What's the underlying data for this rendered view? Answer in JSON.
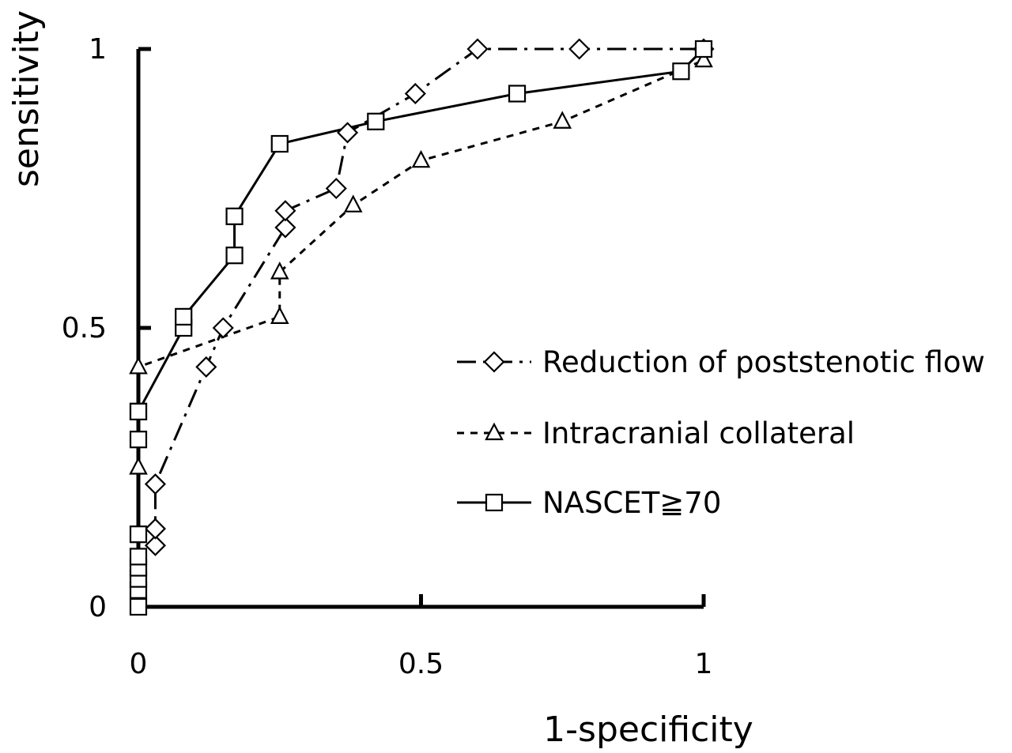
{
  "chart_data": {
    "type": "line",
    "title": "",
    "xlabel": "1-specificity",
    "ylabel": "sensitivity",
    "xlim": [
      0,
      1
    ],
    "ylim": [
      0,
      1
    ],
    "x_ticks": [
      0,
      0.5,
      1
    ],
    "x_tick_labels": [
      "0",
      "0.5",
      "1"
    ],
    "y_ticks": [
      0,
      0.5,
      1
    ],
    "y_tick_labels": [
      "0",
      "0.5",
      "1"
    ],
    "grid": false,
    "legend_position": "center-right",
    "series": [
      {
        "name": "Reduction of poststenotic flow",
        "marker": "diamond",
        "line_style": "dash-dot",
        "color": "#000000",
        "x": [
          0.03,
          0.03,
          0.03,
          0.12,
          0.15,
          0.26,
          0.26,
          0.35,
          0.37,
          0.49,
          0.6,
          0.78,
          1.0
        ],
        "y": [
          0.11,
          0.14,
          0.22,
          0.43,
          0.5,
          0.68,
          0.71,
          0.75,
          0.85,
          0.92,
          1.0,
          1.0,
          1.0
        ]
      },
      {
        "name": "Intracranial collateral",
        "marker": "triangle",
        "line_style": "dashed",
        "color": "#000000",
        "x": [
          0.0,
          0.0,
          0.25,
          0.25,
          0.38,
          0.5,
          0.75,
          1.0
        ],
        "y": [
          0.25,
          0.43,
          0.52,
          0.6,
          0.72,
          0.8,
          0.87,
          0.98
        ]
      },
      {
        "name": "NASCET≧70",
        "marker": "square",
        "line_style": "solid",
        "color": "#000000",
        "x": [
          0.0,
          0.0,
          0.0,
          0.0,
          0.0,
          0.0,
          0.0,
          0.0,
          0.0,
          0.08,
          0.08,
          0.17,
          0.17,
          0.25,
          0.42,
          0.67,
          0.96,
          1.0
        ],
        "y": [
          0.0,
          0.03,
          0.05,
          0.07,
          0.09,
          0.13,
          0.3,
          0.35,
          0.35,
          0.5,
          0.52,
          0.63,
          0.7,
          0.83,
          0.87,
          0.92,
          0.96,
          1.0
        ]
      }
    ]
  }
}
